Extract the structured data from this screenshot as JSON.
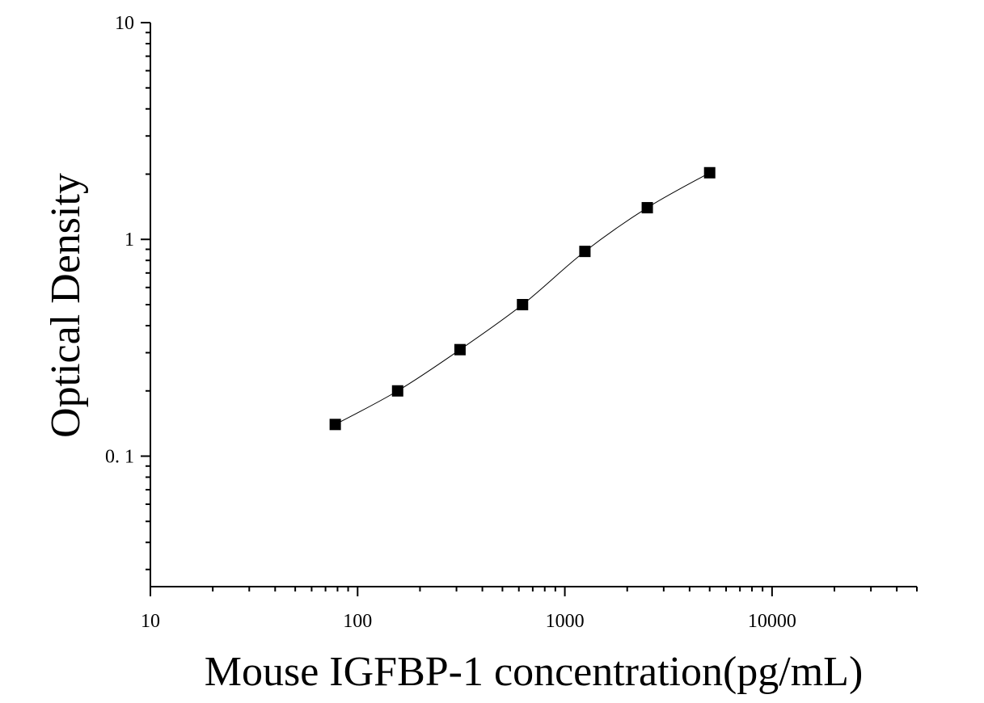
{
  "chart_data": {
    "type": "scatter",
    "title": "",
    "xlabel": "Mouse IGFBP-1 concentration(pg/mL)",
    "ylabel": "Optical Density",
    "x_scale": "log",
    "y_scale": "log",
    "xlim": [
      10,
      50000
    ],
    "ylim": [
      0.025,
      10
    ],
    "x_ticks": [
      10,
      100,
      1000,
      10000
    ],
    "x_tick_labels": [
      "10",
      "100",
      "1000",
      "10000"
    ],
    "y_ticks": [
      0.1,
      1,
      10
    ],
    "y_tick_labels": [
      "0. 1",
      "1",
      "10"
    ],
    "grid": false,
    "legend": "none",
    "marker": "square",
    "marker_color": "#000000",
    "line_color": "#000000",
    "series": [
      {
        "x": [
          78,
          156,
          312,
          625,
          1250,
          2500,
          5000
        ],
        "y": [
          0.14,
          0.2,
          0.31,
          0.5,
          0.88,
          1.4,
          2.03
        ],
        "fit": "smooth-curve"
      }
    ]
  }
}
